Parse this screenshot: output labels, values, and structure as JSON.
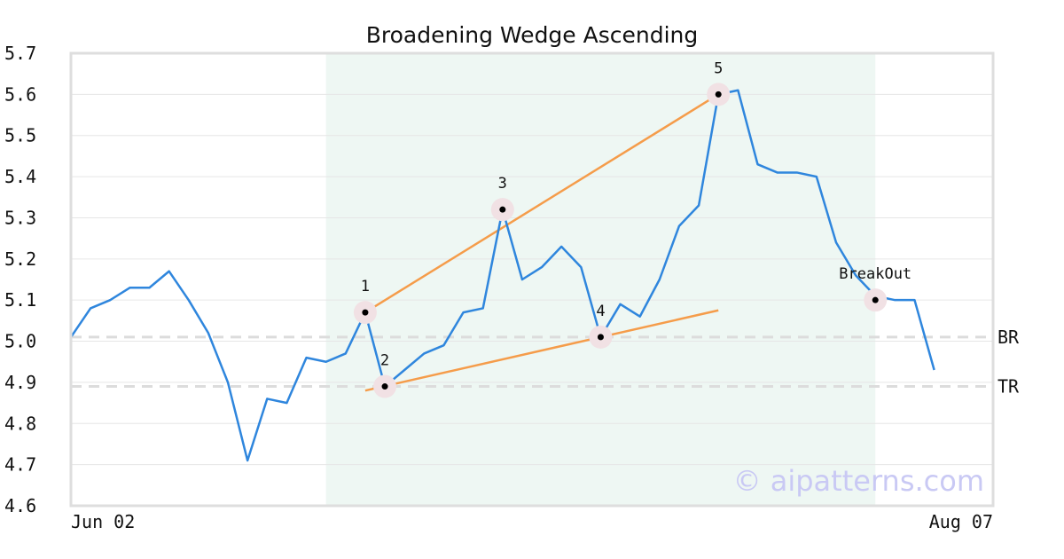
{
  "chart_data": {
    "type": "line",
    "title": "Broadening Wedge Ascending",
    "watermark": "© aipatterns.com",
    "ylim": [
      4.6,
      5.7
    ],
    "yticks": [
      4.6,
      4.7,
      4.8,
      4.9,
      5.0,
      5.1,
      5.2,
      5.3,
      5.4,
      5.5,
      5.6,
      5.7
    ],
    "ytick_labels": [
      "4.6",
      "4.7",
      "4.8",
      "4.9",
      "5.0",
      "5.1",
      "5.2",
      "5.3",
      "5.4",
      "5.5",
      "5.6",
      "5.7"
    ],
    "xlim": [
      0,
      47
    ],
    "x_labels": [
      {
        "x": 0,
        "text": "Jun 02"
      },
      {
        "x": 47,
        "text": "Aug 07"
      }
    ],
    "grid": true,
    "line_color": "#2f86dd",
    "trend_color": "#f59c4a",
    "highlight_color": "#eef7f3",
    "series": [
      {
        "values": [
          5.01,
          5.08,
          5.1,
          5.13,
          5.13,
          5.17,
          5.1,
          5.02,
          4.9,
          4.71,
          4.86,
          4.85,
          4.96,
          4.95,
          4.97,
          5.07,
          4.89,
          4.93,
          4.97,
          4.99,
          5.07,
          5.08,
          5.32,
          5.15,
          5.18,
          5.23,
          5.18,
          5.01,
          5.09,
          5.06,
          5.15,
          5.28,
          5.33,
          5.6,
          5.61,
          5.43,
          5.41,
          5.41,
          5.4,
          5.24,
          5.16,
          5.11,
          5.1,
          5.1,
          4.93
        ]
      }
    ],
    "highlight_region": {
      "x_start": 13,
      "x_end": 41
    },
    "reference_lines": [
      {
        "label": "BR",
        "y": 5.01
      },
      {
        "label": "TR",
        "y": 4.89
      }
    ],
    "trend_lines": [
      {
        "x1": 15,
        "y1": 5.07,
        "x2": 33,
        "y2": 5.6
      },
      {
        "x1": 15,
        "y1": 4.88,
        "x2": 33,
        "y2": 5.075
      }
    ],
    "points": [
      {
        "label": "1",
        "x": 15,
        "y": 5.07
      },
      {
        "label": "2",
        "x": 16,
        "y": 4.89
      },
      {
        "label": "3",
        "x": 22,
        "y": 5.32
      },
      {
        "label": "4",
        "x": 27,
        "y": 5.01
      },
      {
        "label": "5",
        "x": 33,
        "y": 5.6
      },
      {
        "label": "BreakOut",
        "x": 41,
        "y": 5.1
      }
    ]
  }
}
